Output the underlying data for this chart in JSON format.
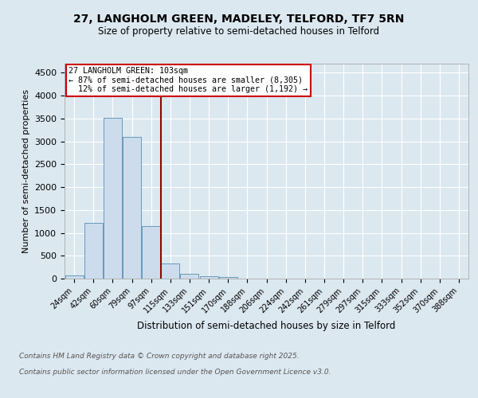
{
  "title1": "27, LANGHOLM GREEN, MADELEY, TELFORD, TF7 5RN",
  "title2": "Size of property relative to semi-detached houses in Telford",
  "xlabel": "Distribution of semi-detached houses by size in Telford",
  "ylabel": "Number of semi-detached properties",
  "categories": [
    "24sqm",
    "42sqm",
    "60sqm",
    "79sqm",
    "97sqm",
    "115sqm",
    "133sqm",
    "151sqm",
    "170sqm",
    "188sqm",
    "206sqm",
    "224sqm",
    "242sqm",
    "261sqm",
    "279sqm",
    "297sqm",
    "315sqm",
    "333sqm",
    "352sqm",
    "370sqm",
    "388sqm"
  ],
  "values": [
    75,
    1220,
    3520,
    3090,
    1150,
    330,
    105,
    60,
    40,
    0,
    0,
    0,
    0,
    0,
    0,
    0,
    0,
    0,
    0,
    0,
    0
  ],
  "bar_color": "#ccdcec",
  "bar_edge_color": "#6699bb",
  "vline_x_index": 4.5,
  "vline_color": "#990000",
  "ylim": [
    0,
    4700
  ],
  "yticks": [
    0,
    500,
    1000,
    1500,
    2000,
    2500,
    3000,
    3500,
    4000,
    4500
  ],
  "annotation_title": "27 LANGHOLM GREEN: 103sqm",
  "annotation_line1": "← 87% of semi-detached houses are smaller (8,305)",
  "annotation_line2": "  12% of semi-detached houses are larger (1,192) →",
  "annotation_box_color": "#ffffff",
  "annotation_box_edge": "#cc0000",
  "footnote1": "Contains HM Land Registry data © Crown copyright and database right 2025.",
  "footnote2": "Contains public sector information licensed under the Open Government Licence v3.0.",
  "background_color": "#dce8f0",
  "plot_background": "#dce8f0"
}
